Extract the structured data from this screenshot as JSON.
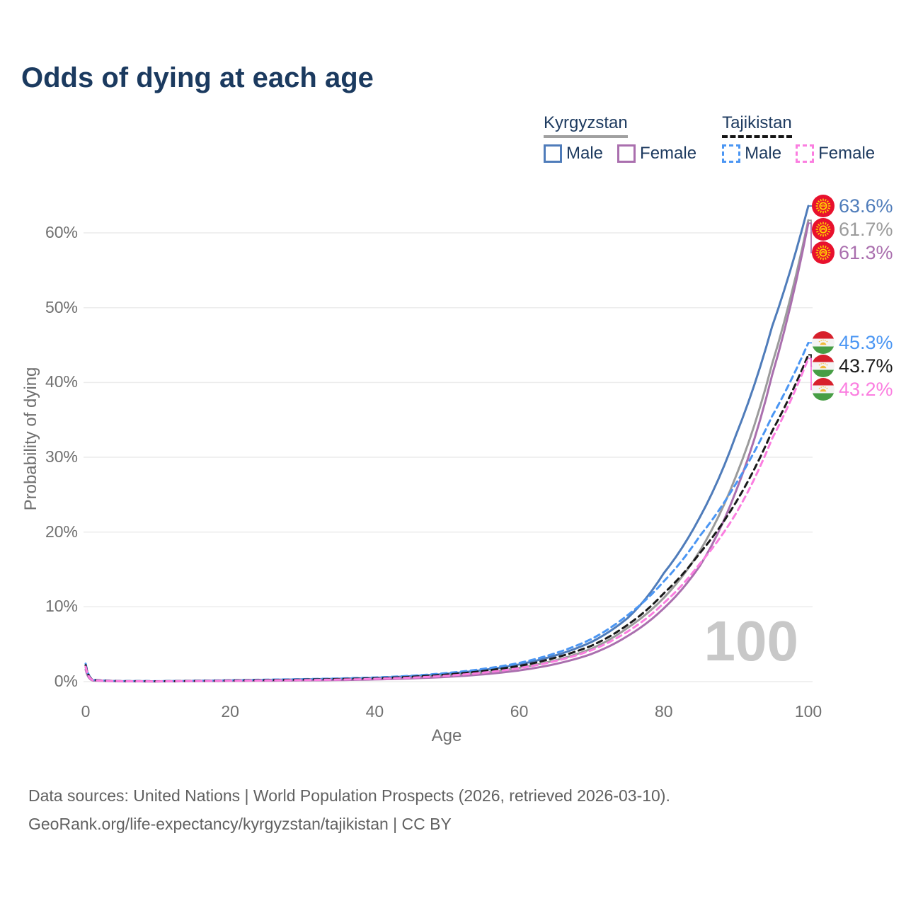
{
  "title": "Odds of dying at each age",
  "watermark": "100",
  "legend": {
    "groups": [
      {
        "id": "kyrgyzstan",
        "label": "Kyrgyzstan",
        "line_style": "solid",
        "underline_color": "#a0a0a0",
        "items": [
          {
            "series": "kg_male",
            "label": "Male",
            "color": "#4f7cba",
            "dashed": false
          },
          {
            "series": "kg_female",
            "label": "Female",
            "color": "#aa6fae",
            "dashed": false
          }
        ]
      },
      {
        "id": "tajikistan",
        "label": "Tajikistan",
        "line_style": "dashed",
        "underline_color": "#151515",
        "items": [
          {
            "series": "tj_male",
            "label": "Male",
            "color": "#4b96f3",
            "dashed": true
          },
          {
            "series": "tj_female",
            "label": "Female",
            "color": "#fb7ee0",
            "dashed": true
          }
        ]
      }
    ]
  },
  "footer": {
    "line1": "Data sources: United Nations | World Population Prospects (2026, retrieved 2026-03-10).",
    "line2": "GeoRank.org/life-expectancy/kyrgyzstan/tajikistan | CC BY"
  },
  "chart_data": {
    "type": "line",
    "title": "Odds of dying at each age",
    "xlabel": "Age",
    "ylabel": "Probability of dying",
    "xlim": [
      0,
      100
    ],
    "ylim": [
      0,
      66
    ],
    "grid": "horizontal",
    "x_ticks": [
      0,
      20,
      40,
      60,
      80,
      100
    ],
    "y_grid_values": [
      0,
      10,
      20,
      30,
      40,
      50,
      60
    ],
    "y_tick_labels": [
      "0%",
      "10%",
      "20%",
      "30%",
      "40%",
      "50%",
      "60%"
    ],
    "legend_position": "top-right",
    "x": [
      0,
      1,
      5,
      10,
      15,
      20,
      25,
      30,
      35,
      40,
      45,
      50,
      55,
      60,
      65,
      70,
      75,
      80,
      85,
      90,
      95,
      100
    ],
    "series": [
      {
        "id": "kg_male",
        "name": "Kyrgyzstan Male",
        "color": "#4f7cba",
        "dash": "solid",
        "flag": "kyrgyzstan",
        "end_label": "63.6%",
        "values": [
          2.2,
          0.2,
          0.06,
          0.05,
          0.1,
          0.17,
          0.24,
          0.3,
          0.38,
          0.5,
          0.72,
          1.05,
          1.55,
          2.3,
          3.5,
          5.3,
          8.5,
          14.5,
          22.0,
          33.0,
          47.5,
          63.6
        ]
      },
      {
        "id": "kg_all",
        "name": "Kyrgyzstan",
        "color": "#9b9b9b",
        "dash": "solid",
        "flag": "kyrgyzstan",
        "end_label": "61.7%",
        "values": [
          1.9,
          0.17,
          0.05,
          0.04,
          0.08,
          0.13,
          0.18,
          0.23,
          0.29,
          0.39,
          0.56,
          0.82,
          1.22,
          1.85,
          2.85,
          4.4,
          7.2,
          11.2,
          17.5,
          27.5,
          42.5,
          61.7
        ]
      },
      {
        "id": "kg_female",
        "name": "Kyrgyzstan Female",
        "color": "#aa6fae",
        "dash": "solid",
        "flag": "kyrgyzstan",
        "end_label": "61.3%",
        "values": [
          1.6,
          0.14,
          0.04,
          0.03,
          0.06,
          0.09,
          0.12,
          0.16,
          0.21,
          0.29,
          0.43,
          0.64,
          0.97,
          1.5,
          2.35,
          3.7,
          6.1,
          9.8,
          15.5,
          25.5,
          41.0,
          61.3
        ]
      },
      {
        "id": "tj_male",
        "name": "Tajikistan Male",
        "color": "#4b96f3",
        "dash": "dashed",
        "flag": "tajikistan",
        "end_label": "45.3%",
        "values": [
          2.4,
          0.25,
          0.07,
          0.06,
          0.11,
          0.19,
          0.26,
          0.33,
          0.42,
          0.55,
          0.78,
          1.15,
          1.7,
          2.5,
          3.8,
          5.7,
          8.9,
          13.4,
          19.5,
          26.5,
          35.5,
          45.3
        ]
      },
      {
        "id": "tj_all",
        "name": "Tajikistan",
        "color": "#1a1a1a",
        "dash": "dashed",
        "flag": "tajikistan",
        "end_label": "43.7%",
        "values": [
          2.2,
          0.22,
          0.06,
          0.05,
          0.09,
          0.15,
          0.21,
          0.27,
          0.34,
          0.45,
          0.64,
          0.95,
          1.42,
          2.1,
          3.2,
          4.8,
          7.6,
          11.8,
          17.2,
          24.0,
          33.5,
          43.7
        ]
      },
      {
        "id": "tj_female",
        "name": "Tajikistan Female",
        "color": "#fb7ee0",
        "dash": "dashed",
        "flag": "tajikistan",
        "end_label": "43.2%",
        "values": [
          2.0,
          0.19,
          0.05,
          0.04,
          0.07,
          0.12,
          0.16,
          0.21,
          0.27,
          0.37,
          0.53,
          0.79,
          1.2,
          1.8,
          2.75,
          4.2,
          6.7,
          10.5,
          15.8,
          22.5,
          32.5,
          43.2
        ]
      }
    ]
  }
}
